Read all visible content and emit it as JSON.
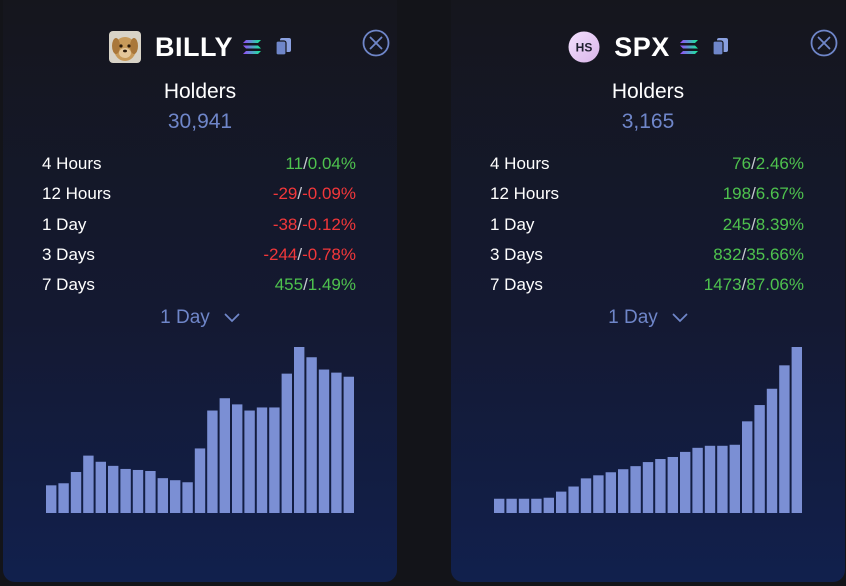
{
  "colors": {
    "positive": "#4ec24e",
    "negative": "#f2373a",
    "accent": "#6f86c9",
    "bar": "#7b8fd4"
  },
  "panels": [
    {
      "token": "BILLY",
      "avatar": "dog-avatar-icon",
      "chain_icon": "solana-icon",
      "copy_icon": "copy-icon",
      "close_icon": "close-icon",
      "holders_label": "Holders",
      "holders_value": "30,941",
      "stats": [
        {
          "label": "4 Hours",
          "change": "11",
          "pct": "0.04%",
          "dir": "pos"
        },
        {
          "label": "12 Hours",
          "change": "-29",
          "pct": "-0.09%",
          "dir": "neg"
        },
        {
          "label": "1 Day",
          "change": "-38",
          "pct": "-0.12%",
          "dir": "neg"
        },
        {
          "label": "3 Days",
          "change": "-244",
          "pct": "-0.78%",
          "dir": "neg"
        },
        {
          "label": "7 Days",
          "change": "455",
          "pct": "1.49%",
          "dir": "pos"
        }
      ],
      "period": "1 Day",
      "chart_data": {
        "type": "bar",
        "values": [
          27,
          29,
          40,
          56,
          50,
          46,
          43,
          42,
          41,
          34,
          32,
          30,
          63,
          100,
          112,
          106,
          100,
          103,
          103,
          136,
          162,
          152,
          140,
          137,
          133
        ]
      }
    },
    {
      "token": "SPX",
      "avatar": "hs-avatar-icon",
      "avatar_text": "HS",
      "chain_icon": "solana-icon",
      "copy_icon": "copy-icon",
      "close_icon": "close-icon",
      "holders_label": "Holders",
      "holders_value": "3,165",
      "stats": [
        {
          "label": "4 Hours",
          "change": "76",
          "pct": "2.46%",
          "dir": "pos"
        },
        {
          "label": "12 Hours",
          "change": "198",
          "pct": "6.67%",
          "dir": "pos"
        },
        {
          "label": "1 Day",
          "change": "245",
          "pct": "8.39%",
          "dir": "pos"
        },
        {
          "label": "3 Days",
          "change": "832",
          "pct": "35.66%",
          "dir": "pos"
        },
        {
          "label": "7 Days",
          "change": "1473",
          "pct": "87.06%",
          "dir": "pos"
        }
      ],
      "period": "1 Day",
      "chart_data": {
        "type": "bar",
        "values": [
          14,
          14,
          14,
          14,
          15,
          21,
          26,
          34,
          37,
          40,
          43,
          46,
          50,
          53,
          55,
          60,
          64,
          66,
          66,
          67,
          90,
          106,
          122,
          145,
          163
        ]
      }
    }
  ]
}
